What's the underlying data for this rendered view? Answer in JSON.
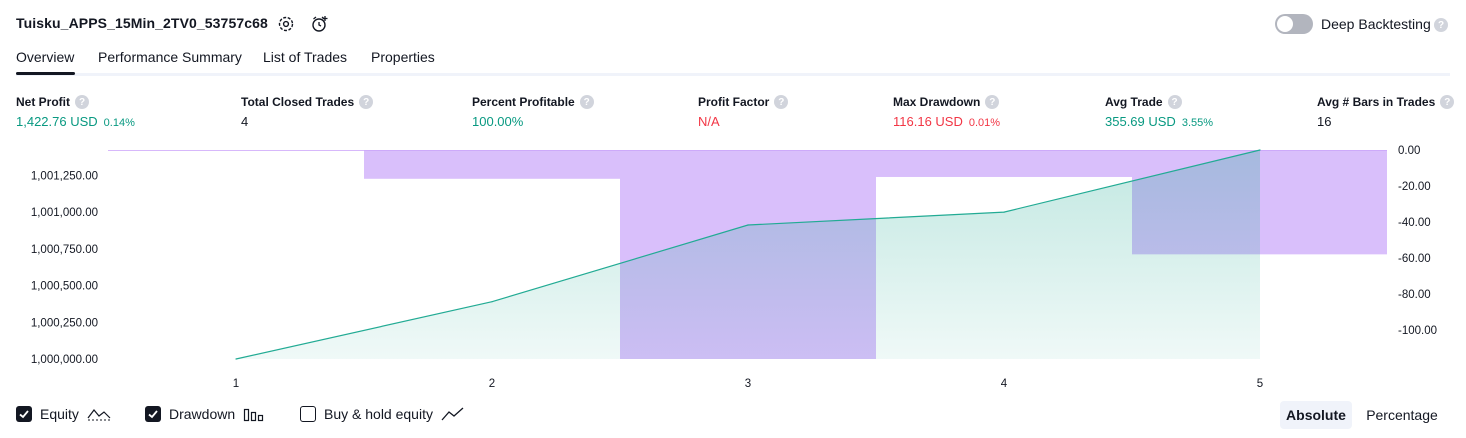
{
  "header": {
    "title": "Tuisku_APPS_15Min_2TV0_53757c68",
    "deep_backtesting_label": "Deep Backtesting",
    "deep_backtesting_on": false,
    "help_glyph": "?"
  },
  "tabs": [
    {
      "label": "Overview",
      "active": true
    },
    {
      "label": "Performance Summary",
      "active": false
    },
    {
      "label": "List of Trades",
      "active": false
    },
    {
      "label": "Properties",
      "active": false
    }
  ],
  "metrics": {
    "net_profit": {
      "label": "Net Profit",
      "value": "1,422.76 USD",
      "pct": "0.14%"
    },
    "total_closed_trades": {
      "label": "Total Closed Trades",
      "value": "4"
    },
    "percent_profitable": {
      "label": "Percent Profitable",
      "value": "100.00%"
    },
    "profit_factor": {
      "label": "Profit Factor",
      "value": "N/A"
    },
    "max_drawdown": {
      "label": "Max Drawdown",
      "value": "116.16 USD",
      "pct": "0.01%"
    },
    "avg_trade": {
      "label": "Avg Trade",
      "value": "355.69 USD",
      "pct": "3.55%"
    },
    "avg_bars": {
      "label": "Avg # Bars in Trades",
      "value": "16"
    }
  },
  "colors": {
    "profit": "#089981",
    "loss": "#f23645",
    "equity_line": "#22ab94",
    "drawdown_fill": "#c9a4f9"
  },
  "chart_data": {
    "type": "area",
    "x": [
      1,
      2,
      3,
      4,
      5
    ],
    "xticks": [
      "1",
      "2",
      "3",
      "4",
      "5"
    ],
    "equity": {
      "axis": "left",
      "values": [
        1000000,
        1000390,
        1000912,
        1001000,
        1001422.76
      ],
      "ylim": [
        1000000,
        1001422.76
      ],
      "ticks": [
        {
          "v": 1000000,
          "label": "1,000,000.00"
        },
        {
          "v": 1000250,
          "label": "1,000,250.00"
        },
        {
          "v": 1000500,
          "label": "1,000,500.00"
        },
        {
          "v": 1000750,
          "label": "1,000,750.00"
        },
        {
          "v": 1001000,
          "label": "1,001,000.00"
        },
        {
          "v": 1001250,
          "label": "1,001,250.00"
        }
      ]
    },
    "drawdown": {
      "axis": "right",
      "values": [
        0,
        -16,
        -116.16,
        -15,
        -58
      ],
      "ylim": [
        -116.16,
        0
      ],
      "ticks": [
        {
          "v": 0,
          "label": "0.00"
        },
        {
          "v": -20,
          "label": "-20.00"
        },
        {
          "v": -40,
          "label": "-40.00"
        },
        {
          "v": -60,
          "label": "-60.00"
        },
        {
          "v": -80,
          "label": "-80.00"
        },
        {
          "v": -100,
          "label": "-100.00"
        }
      ]
    },
    "grid": false
  },
  "legend": [
    {
      "label": "Equity",
      "checked": true,
      "icon": "equity-line-icon"
    },
    {
      "label": "Drawdown",
      "checked": true,
      "icon": "drawdown-bars-icon"
    },
    {
      "label": "Buy & hold equity",
      "checked": false,
      "icon": "buy-hold-line-icon"
    }
  ],
  "mode": {
    "absolute_label": "Absolute",
    "percentage_label": "Percentage",
    "selected": "Absolute"
  }
}
